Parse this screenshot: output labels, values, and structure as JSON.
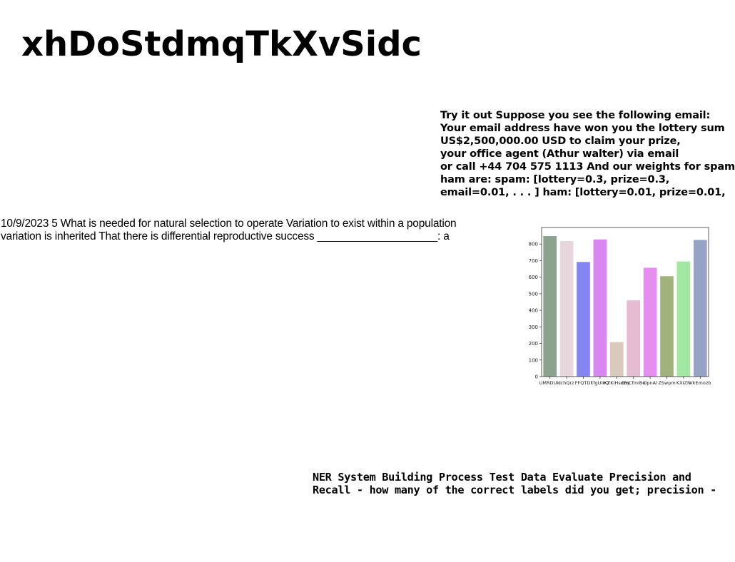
{
  "page": {
    "title": "xhDoStdmqTkXvSidc"
  },
  "spam_text": {
    "lines": [
      "Try it out Suppose you see the following email:",
      "Your email address have won you the lottery sum",
      "US$2,500,000.00 USD to claim your prize,",
      "your office agent (Athur walter) via email",
      "or call +44 704 575 1113 And our weights for spam",
      "ham are: spam: [lottery=0.3, prize=0.3,",
      "email=0.01, . . . ] ham: [lottery=0.01, prize=0.01,"
    ]
  },
  "natural_selection_text": {
    "lines": [
      "10/9/2023 5 What is needed for natural selection to operate Variation to exist within a population",
      "variation is inherited That there is differential reproductive success ____________________: a"
    ]
  },
  "ner_text": {
    "lines": [
      "NER System Building Process Test Data Evaluate Precision and",
      "Recall - how many of the correct labels did you get; precision -"
    ]
  },
  "chart_data": {
    "type": "bar",
    "categories": [
      "UMRDUkl",
      "ichQrz",
      "FFQTDl",
      "tfgUikQ",
      "KZKIHsdEq",
      "cmCfmiBo",
      "OpnAl",
      "ZSwpm",
      "KXIZN",
      "VkEmozb"
    ],
    "values": [
      848,
      818,
      692,
      828,
      208,
      460,
      657,
      606,
      695,
      825
    ],
    "colors": [
      "#8aa28e",
      "#e8d6dd",
      "#8585f2",
      "#d887f0",
      "#d9cabd",
      "#e6bcd2",
      "#e58ef0",
      "#a1b27d",
      "#a2e8a2",
      "#96a2c6"
    ],
    "ylim": [
      0,
      900
    ],
    "yticks": [
      0,
      100,
      200,
      300,
      400,
      500,
      600,
      700,
      800
    ],
    "title": "",
    "xlabel": "",
    "ylabel": "",
    "grid": false
  }
}
